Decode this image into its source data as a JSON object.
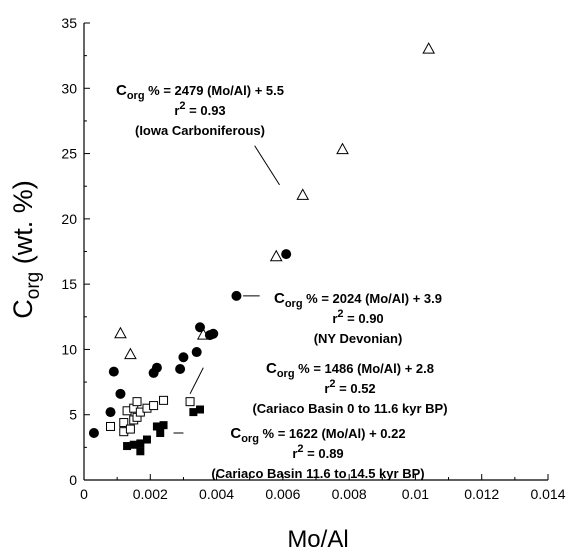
{
  "chart_data": {
    "type": "scatter",
    "xlabel": "Mo/Al",
    "ylabel": {
      "main": "C",
      "sub": "org",
      "rest": " (wt. %)"
    },
    "xlim": [
      0,
      0.014
    ],
    "ylim": [
      0,
      35
    ],
    "x_ticks": [
      {
        "value": 0,
        "label": "0"
      },
      {
        "value": 0.002,
        "label": "0.002"
      },
      {
        "value": 0.004,
        "label": "0.004"
      },
      {
        "value": 0.006,
        "label": "0.006"
      },
      {
        "value": 0.008,
        "label": "0.008"
      },
      {
        "value": 0.01,
        "label": "0.01"
      },
      {
        "value": 0.012,
        "label": "0.012"
      },
      {
        "value": 0.014,
        "label": "0.014"
      }
    ],
    "y_ticks": [
      {
        "value": 0,
        "label": "0"
      },
      {
        "value": 5,
        "label": "5"
      },
      {
        "value": 10,
        "label": "10"
      },
      {
        "value": 15,
        "label": "15"
      },
      {
        "value": 20,
        "label": "20"
      },
      {
        "value": 25,
        "label": "25"
      },
      {
        "value": 30,
        "label": "30"
      },
      {
        "value": 35,
        "label": "35"
      }
    ],
    "grid": false,
    "legend": "none",
    "series": [
      {
        "marker": "open-triangle",
        "points": [
          [
            0.0104,
            33
          ],
          [
            0.0078,
            25.3
          ],
          [
            0.0066,
            21.8
          ],
          [
            0.0058,
            17.1
          ],
          [
            0.0011,
            11.2
          ],
          [
            0.0014,
            9.6
          ],
          [
            0.0036,
            11.1
          ]
        ]
      },
      {
        "marker": "filled-circle",
        "points": [
          [
            0.0003,
            3.6
          ],
          [
            0.0008,
            5.2
          ],
          [
            0.0009,
            8.3
          ],
          [
            0.0011,
            6.6
          ],
          [
            0.0021,
            8.2
          ],
          [
            0.0022,
            8.6
          ],
          [
            0.0029,
            8.5
          ],
          [
            0.003,
            9.4
          ],
          [
            0.0034,
            9.8
          ],
          [
            0.0035,
            11.7
          ],
          [
            0.0038,
            11.1
          ],
          [
            0.0039,
            11.2
          ],
          [
            0.0046,
            14.1
          ],
          [
            0.0061,
            17.3
          ]
        ]
      },
      {
        "marker": "open-square",
        "points": [
          [
            0.0008,
            4.1
          ],
          [
            0.0012,
            3.7
          ],
          [
            0.0012,
            4.4
          ],
          [
            0.0013,
            5.3
          ],
          [
            0.0014,
            3.9
          ],
          [
            0.0015,
            4.6
          ],
          [
            0.0015,
            5.5
          ],
          [
            0.0016,
            4.8
          ],
          [
            0.0017,
            5.2
          ],
          [
            0.0019,
            5.5
          ],
          [
            0.0016,
            6.0
          ],
          [
            0.0021,
            5.7
          ],
          [
            0.0024,
            6.1
          ],
          [
            0.0032,
            6.0
          ]
        ]
      },
      {
        "marker": "filled-square",
        "points": [
          [
            0.0013,
            2.6
          ],
          [
            0.0015,
            2.7
          ],
          [
            0.0017,
            2.2
          ],
          [
            0.0017,
            2.8
          ],
          [
            0.0019,
            3.1
          ],
          [
            0.0022,
            4.1
          ],
          [
            0.0023,
            3.6
          ],
          [
            0.0024,
            4.2
          ],
          [
            0.0033,
            5.2
          ],
          [
            0.0035,
            5.4
          ]
        ]
      }
    ],
    "annotations": [
      {
        "lines": [
          {
            "pre": "C",
            "sub": "org",
            "post": " % = 2479 (Mo/Al) + 5.5"
          },
          {
            "pre": "r",
            "sup": "2",
            "post": " = 0.93"
          },
          {
            "pre": "(Iowa Carboniferous)"
          }
        ],
        "leader": {
          "from": [
            0.00515,
            25.6
          ],
          "to": [
            0.0059,
            22.6
          ]
        }
      },
      {
        "lines": [
          {
            "pre": "C",
            "sub": "org",
            "post": " % = 2024 (Mo/Al) + 3.9"
          },
          {
            "pre": "r",
            "sup": "2",
            "post": " = 0.90"
          },
          {
            "pre": "(NY Devonian)"
          }
        ],
        "leader": {
          "from": [
            0.0048,
            14.1
          ],
          "to": [
            0.0053,
            14.1
          ]
        }
      },
      {
        "lines": [
          {
            "pre": "C",
            "sub": "org",
            "post": " % = 1486 (Mo/Al) + 2.8"
          },
          {
            "pre": "r",
            "sup": "2",
            "post": " = 0.52"
          },
          {
            "pre": "(Cariaco Basin 0 to 11.6 kyr BP)"
          }
        ],
        "leader": {
          "from": [
            0.0032,
            6.6
          ],
          "to": [
            0.0036,
            8.6
          ]
        }
      },
      {
        "lines": [
          {
            "pre": "C",
            "sub": "org",
            "post": " % = 1622 (Mo/Al) + 0.22"
          },
          {
            "pre": "r",
            "sup": "2",
            "post": " = 0.89"
          },
          {
            "pre": "(Cariaco Basin 11.6 to 14.5 kyr BP)"
          }
        ],
        "leader": {
          "from": [
            0.0027,
            3.6
          ],
          "to": [
            0.003,
            3.6
          ]
        }
      }
    ]
  }
}
